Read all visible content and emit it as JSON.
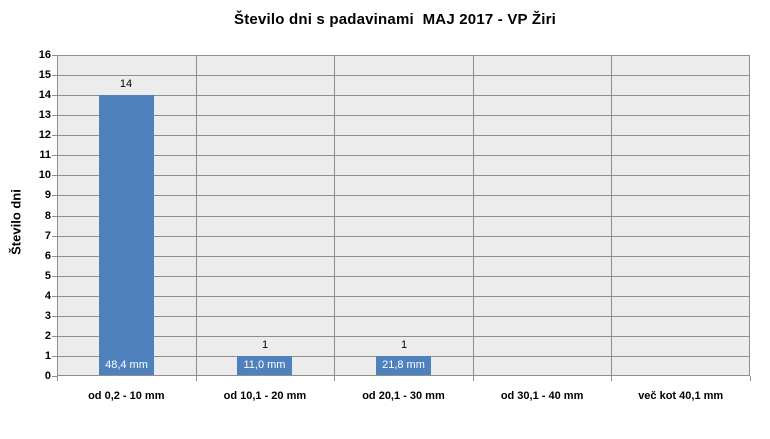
{
  "chart_data": {
    "type": "bar",
    "title": "Število dni s padavinami  MAJ 2017 - VP Žiri",
    "ylabel": "Število dni",
    "xlabel": "",
    "categories": [
      "od 0,2 - 10 mm",
      "od 10,1 - 20 mm",
      "od 20,1 - 30 mm",
      "od 30,1 - 40 mm",
      "več kot 40,1 mm"
    ],
    "values": [
      14,
      1,
      1,
      0,
      0
    ],
    "count_labels": [
      "14",
      "1",
      "1",
      "",
      ""
    ],
    "bar_inner_labels": [
      "48,4 mm",
      "11,0 mm",
      "21,8 mm",
      "",
      ""
    ],
    "ylim": [
      0,
      16
    ],
    "ytick_step": 1,
    "grid": "horizontal major lines plus vertical category boundary lines",
    "legend_position": "none",
    "colors": {
      "bar": "#4F81BD",
      "plot_background": "#ECECEC",
      "gridline": "#8E8E8E",
      "inner_label_text": "#FFFFFF",
      "text": "#000000",
      "page_background": "#FFFFFF"
    }
  }
}
